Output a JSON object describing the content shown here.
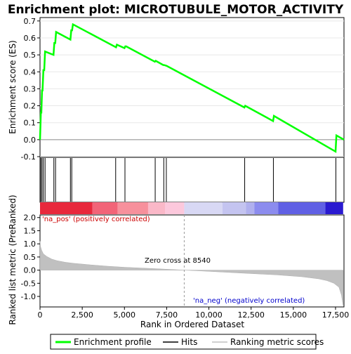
{
  "chart_data": {
    "type": "line",
    "title": "Enrichment plot: MICROTUBULE_MOTOR_ACTIVITY",
    "top_panel": {
      "ylabel": "Enrichment score (ES)",
      "ylim": [
        -0.1,
        0.72
      ],
      "yticks": [
        "-0.1",
        "0.0",
        "0.1",
        "0.2",
        "0.3",
        "0.4",
        "0.5",
        "0.6",
        "0.7"
      ],
      "ytick_values": [
        -0.1,
        0.0,
        0.1,
        0.2,
        0.3,
        0.4,
        0.5,
        0.6,
        0.7
      ],
      "series": [
        {
          "name": "Enrichment profile",
          "color": "#00ff00",
          "x": [
            0,
            50,
            80,
            120,
            150,
            200,
            250,
            300,
            800,
            850,
            900,
            950,
            1800,
            1850,
            1900,
            1950,
            4500,
            4550,
            5000,
            5050,
            5100,
            6800,
            6850,
            7300,
            7350,
            7500,
            12100,
            12150,
            13800,
            13850,
            17500,
            17550,
            18000
          ],
          "y": [
            0.0,
            0.16,
            0.16,
            0.29,
            0.29,
            0.41,
            0.41,
            0.52,
            0.5,
            0.57,
            0.57,
            0.635,
            0.59,
            0.645,
            0.645,
            0.68,
            0.545,
            0.56,
            0.54,
            0.55,
            0.55,
            0.46,
            0.465,
            0.44,
            0.44,
            0.435,
            0.19,
            0.2,
            0.11,
            0.14,
            -0.07,
            0.025,
            0.0
          ]
        }
      ]
    },
    "hits": {
      "name": "Hits",
      "positions": [
        50,
        120,
        200,
        300,
        820,
        920,
        1800,
        1880,
        4480,
        5030,
        6820,
        7330,
        7480,
        12120,
        13820,
        17520
      ]
    },
    "ranking_panel": {
      "ylabel": "Ranked list metric (PreRanked)",
      "xlabel": "Rank in Ordered Dataset",
      "ylim": [
        -1.4,
        2.1
      ],
      "yticks": [
        "-1.0",
        "-0.5",
        "0.0",
        "0.5",
        "1.0",
        "1.5",
        "2.0"
      ],
      "ytick_values": [
        -1.0,
        -0.5,
        0.0,
        0.5,
        1.0,
        1.5,
        2.0
      ],
      "xlim": [
        0,
        18000
      ],
      "xticks": [
        "0",
        "2,500",
        "5,000",
        "7,500",
        "10,000",
        "12,500",
        "15,000",
        "17,500"
      ],
      "xtick_values": [
        0,
        2500,
        5000,
        7500,
        10000,
        12500,
        15000,
        17500
      ],
      "series_name": "Ranking metric scores",
      "metric_curve": {
        "rank": [
          0,
          30,
          100,
          200,
          400,
          700,
          1000,
          1500,
          2000,
          3000,
          4000,
          5000,
          6000,
          7000,
          8000,
          8540,
          9500,
          11000,
          12500,
          14000,
          15500,
          16500,
          17000,
          17400,
          17700,
          17850,
          17950
        ],
        "score": [
          1.1,
          0.9,
          0.75,
          0.62,
          0.52,
          0.42,
          0.36,
          0.3,
          0.26,
          0.2,
          0.15,
          0.11,
          0.08,
          0.05,
          0.02,
          0.0,
          -0.03,
          -0.08,
          -0.13,
          -0.18,
          -0.25,
          -0.33,
          -0.4,
          -0.5,
          -0.65,
          -0.95,
          -1.35
        ]
      },
      "zero_cross_label": "Zero cross at 8540",
      "zero_cross": 8540,
      "pos_label": "'na_pos' (positively correlated)",
      "neg_label": "'na_neg' (negatively correlated)"
    },
    "color_bar": {
      "segments": [
        {
          "from": 0,
          "to": 3100,
          "color": "#e8283c"
        },
        {
          "from": 3100,
          "to": 4600,
          "color": "#f26478"
        },
        {
          "from": 4600,
          "to": 6400,
          "color": "#f7909c"
        },
        {
          "from": 6400,
          "to": 7400,
          "color": "#fab8c8"
        },
        {
          "from": 7400,
          "to": 8540,
          "color": "#fcc8dc"
        },
        {
          "from": 8540,
          "to": 10800,
          "color": "#d8d8f4"
        },
        {
          "from": 10800,
          "to": 12200,
          "color": "#c4c4f0"
        },
        {
          "from": 12200,
          "to": 12700,
          "color": "#b0b0ee"
        },
        {
          "from": 12700,
          "to": 14100,
          "color": "#8c8cee"
        },
        {
          "from": 14100,
          "to": 16900,
          "color": "#6060e4"
        },
        {
          "from": 16900,
          "to": 17950,
          "color": "#2a1ad0"
        }
      ]
    },
    "legend": [
      {
        "label": "Enrichment profile",
        "color": "#00ff00"
      },
      {
        "label": "Hits",
        "color": "#000000"
      },
      {
        "label": "Ranking metric scores",
        "color": "#c0c0c0"
      }
    ]
  }
}
